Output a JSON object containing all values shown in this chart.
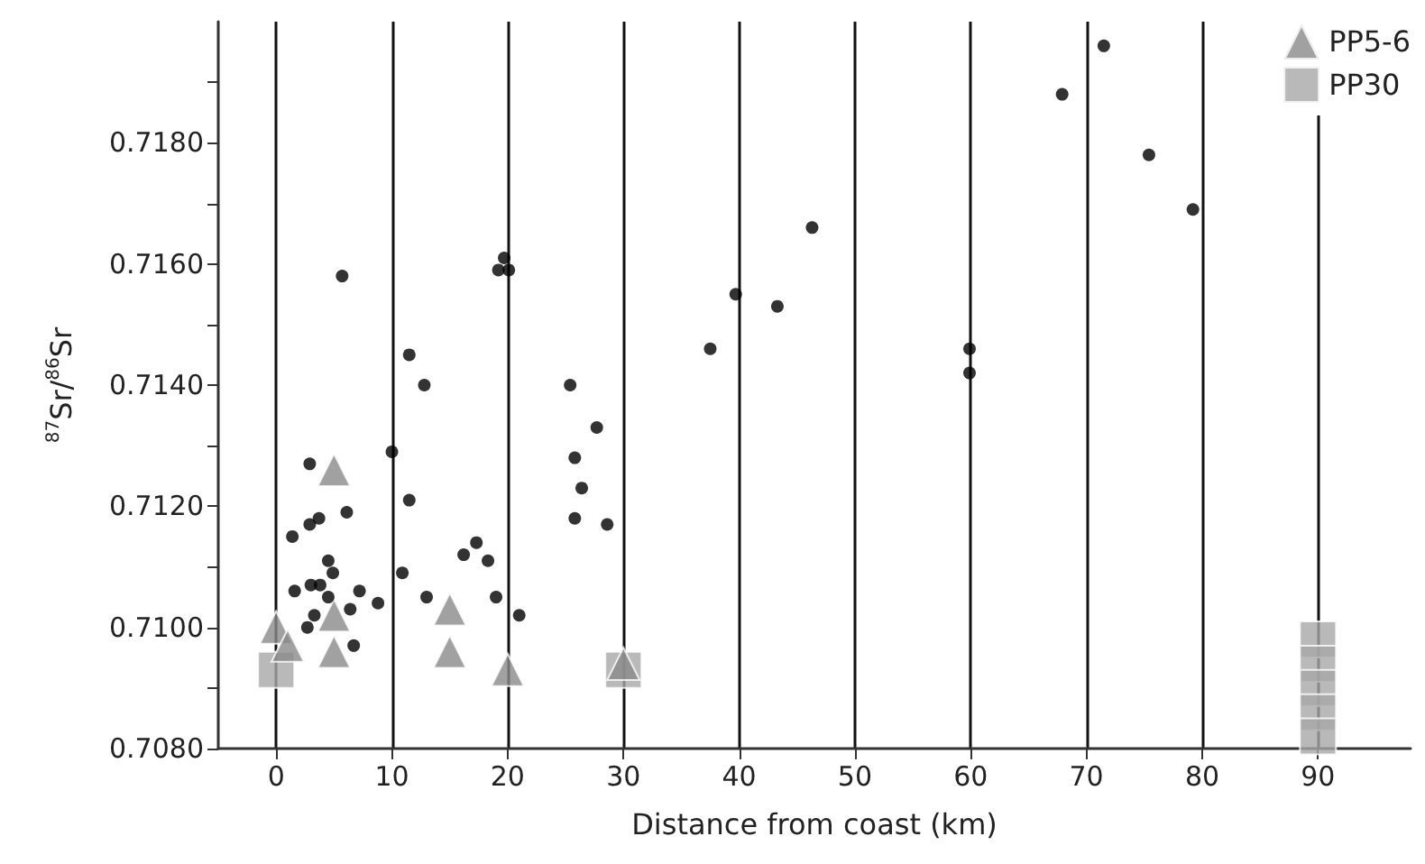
{
  "chart_data": {
    "type": "scatter",
    "xlabel": "Distance from coast (km)",
    "ylabel": "$^{87}$Sr/$^{86}$Sr",
    "xlim": [
      -5,
      98
    ],
    "xticks": [
      0,
      10,
      20,
      30,
      40,
      50,
      60,
      70,
      80,
      90
    ],
    "ylim": [
      0.708,
      0.72
    ],
    "yticks": [
      {
        "value": 0.708,
        "label": "0.7080"
      },
      {
        "value": 0.709,
        "label": null
      },
      {
        "value": 0.71,
        "label": "0.7100"
      },
      {
        "value": 0.711,
        "label": null
      },
      {
        "value": 0.712,
        "label": "0.7120"
      },
      {
        "value": 0.713,
        "label": null
      },
      {
        "value": 0.714,
        "label": "0.7140"
      },
      {
        "value": 0.715,
        "label": null
      },
      {
        "value": 0.716,
        "label": "0.7160"
      },
      {
        "value": 0.717,
        "label": null
      },
      {
        "value": 0.718,
        "label": "0.7180"
      },
      {
        "value": 0.719,
        "label": null
      }
    ],
    "grid": "x",
    "legend": "top right",
    "series": [
      {
        "marker": "circle",
        "color": "#000000",
        "x": [
          5.7,
          11.5,
          12.8,
          10,
          11.5,
          2.9,
          1.4,
          2.9,
          3.7,
          6.1,
          1.6,
          3.0,
          3.8,
          4.5,
          4.9,
          2.7,
          3.3,
          6.4,
          7.2,
          8.8,
          6.7,
          4.5,
          10.9,
          13,
          16.2,
          17.3,
          18.3,
          19,
          21,
          25.8,
          26.4,
          25.8,
          28.6,
          25.4,
          27.7,
          19.2,
          19.7,
          20.1,
          37.5,
          39.7,
          43.3,
          46.3,
          59.9,
          59.9,
          67.9,
          71.5,
          75.4,
          79.2
        ],
        "values": [
          0.7158,
          0.7145,
          0.714,
          0.7129,
          0.7121,
          0.7127,
          0.7115,
          0.7117,
          0.7118,
          0.7119,
          0.7106,
          0.7107,
          0.7107,
          0.7111,
          0.7109,
          0.71,
          0.7102,
          0.7103,
          0.7106,
          0.7104,
          0.7097,
          0.7105,
          0.7109,
          0.7105,
          0.7112,
          0.7114,
          0.7111,
          0.7105,
          0.7102,
          0.7128,
          0.7123,
          0.7118,
          0.7117,
          0.714,
          0.7133,
          0.7159,
          0.7161,
          0.7159,
          0.7146,
          0.7155,
          0.7153,
          0.7166,
          0.7146,
          0.7142,
          0.7188,
          0.7196,
          0.7178,
          0.7169
        ]
      },
      {
        "name": "PP30",
        "marker": "square",
        "color": "#a8a8a8",
        "x": [
          0,
          30,
          90,
          90,
          90,
          90,
          90
        ],
        "values": [
          0.7093,
          0.7093,
          0.7098,
          0.7094,
          0.709,
          0.7086,
          0.7082
        ]
      },
      {
        "name": "PP5-6",
        "marker": "triangle",
        "color": "#8a8a8a",
        "x": [
          0,
          1,
          5,
          5,
          5,
          15,
          15,
          20,
          30
        ],
        "values": [
          0.71,
          0.7097,
          0.7126,
          0.7102,
          0.7096,
          0.7103,
          0.7096,
          0.7093,
          0.7094
        ]
      }
    ]
  }
}
